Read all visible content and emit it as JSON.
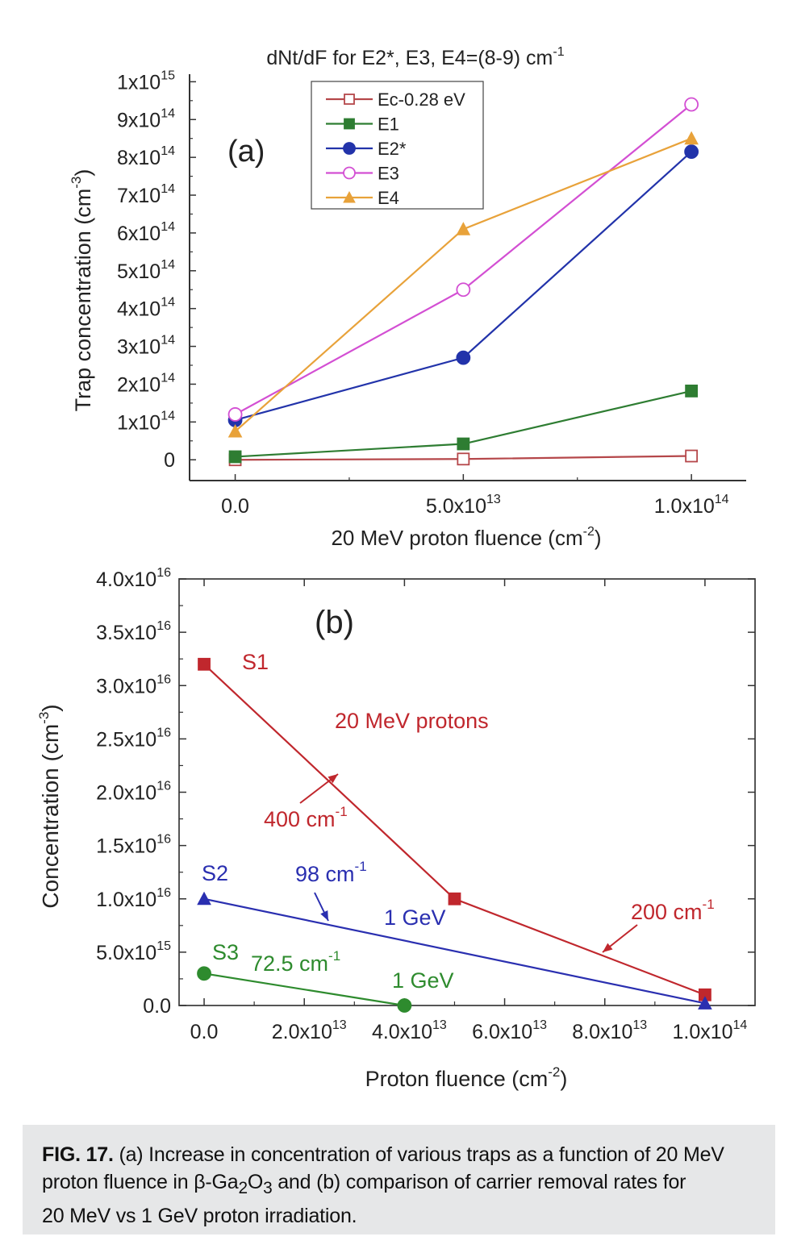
{
  "chart_data": [
    {
      "panel": "(a)",
      "type": "line",
      "title": "dNt/dF for E2*, E3, E4=(8-9) cm",
      "title_sup": "-1",
      "xlabel": "20 MeV proton fluence (cm",
      "xlabel_sup": "-2",
      "xlabel_end": ")",
      "ylabel": "Trap concentration (cm",
      "ylabel_sup": "-3",
      "ylabel_end": ")",
      "xlim": [
        -10000000000000.0,
        112000000000000.0
      ],
      "ylim": [
        -55000000000000.0,
        1020000000000000.0
      ],
      "x": [
        0,
        50000000000000.0,
        100000000000000.0
      ],
      "x_tick_labels": [
        {
          "value": 0,
          "base": "0.0",
          "sup": ""
        },
        {
          "value": 50000000000000.0,
          "base": "5.0x10",
          "sup": "13"
        },
        {
          "value": 100000000000000.0,
          "base": "1.0x10",
          "sup": "14"
        }
      ],
      "y_tick_labels": [
        {
          "value": 0,
          "base": "0",
          "sup": ""
        },
        {
          "value": 100000000000000.0,
          "base": "1x10",
          "sup": "14"
        },
        {
          "value": 200000000000000.0,
          "base": "2x10",
          "sup": "14"
        },
        {
          "value": 300000000000000.0,
          "base": "3x10",
          "sup": "14"
        },
        {
          "value": 400000000000000.0,
          "base": "4x10",
          "sup": "14"
        },
        {
          "value": 500000000000000.0,
          "base": "5x10",
          "sup": "14"
        },
        {
          "value": 600000000000000.0,
          "base": "6x10",
          "sup": "14"
        },
        {
          "value": 700000000000000.0,
          "base": "7x10",
          "sup": "14"
        },
        {
          "value": 800000000000000.0,
          "base": "8x10",
          "sup": "14"
        },
        {
          "value": 900000000000000.0,
          "base": "9x10",
          "sup": "14"
        },
        {
          "value": 1000000000000000.0,
          "base": "1x10",
          "sup": "15"
        }
      ],
      "series": [
        {
          "name": "Ec-0.28 eV",
          "color": "#b5474a",
          "marker": "square-open",
          "values": [
            0,
            2000000000000.0,
            10000000000000.0
          ]
        },
        {
          "name": "E1",
          "color": "#2e7d32",
          "marker": "square",
          "values": [
            8000000000000.0,
            42000000000000.0,
            182000000000000.0
          ]
        },
        {
          "name": "E2*",
          "color": "#2233aa",
          "marker": "circle",
          "values": [
            105000000000000.0,
            270000000000000.0,
            815000000000000.0
          ]
        },
        {
          "name": "E3",
          "color": "#d34fd3",
          "marker": "circle-open",
          "values": [
            120000000000000.0,
            450000000000000.0,
            940000000000000.0
          ]
        },
        {
          "name": "E4",
          "color": "#e8a23a",
          "marker": "triangle",
          "values": [
            75000000000000.0,
            610000000000000.0,
            850000000000000.0
          ]
        }
      ],
      "annotation": "(a)",
      "legend_position": "top-left"
    },
    {
      "panel": "(b)",
      "type": "line",
      "xlabel": "Proton fluence (cm",
      "xlabel_sup": "-2",
      "xlabel_end": ")",
      "ylabel": "Concentration (cm",
      "ylabel_sup": "-3",
      "ylabel_end": ")",
      "xlim": [
        -5000000000000.0,
        110000000000000.0
      ],
      "ylim": [
        0,
        4e+16
      ],
      "x_tick_labels": [
        {
          "value": 0,
          "base": "0.0",
          "sup": ""
        },
        {
          "value": 20000000000000.0,
          "base": "2.0x10",
          "sup": "13"
        },
        {
          "value": 40000000000000.0,
          "base": "4.0x10",
          "sup": "13"
        },
        {
          "value": 60000000000000.0,
          "base": "6.0x10",
          "sup": "13"
        },
        {
          "value": 80000000000000.0,
          "base": "8.0x10",
          "sup": "13"
        },
        {
          "value": 100000000000000.0,
          "base": "1.0x10",
          "sup": "14"
        }
      ],
      "y_tick_labels": [
        {
          "value": 0,
          "base": "0.0",
          "sup": ""
        },
        {
          "value": 5000000000000000.0,
          "base": "5.0x10",
          "sup": "15"
        },
        {
          "value": 1e+16,
          "base": "1.0x10",
          "sup": "16"
        },
        {
          "value": 1.5e+16,
          "base": "1.5x10",
          "sup": "16"
        },
        {
          "value": 2e+16,
          "base": "2.0x10",
          "sup": "16"
        },
        {
          "value": 2.5e+16,
          "base": "2.5x10",
          "sup": "16"
        },
        {
          "value": 3e+16,
          "base": "3.0x10",
          "sup": "16"
        },
        {
          "value": 3.5e+16,
          "base": "3.5x10",
          "sup": "16"
        },
        {
          "value": 4e+16,
          "base": "4.0x10",
          "sup": "16"
        }
      ],
      "series": [
        {
          "name": "S1",
          "color": "#c0272d",
          "marker": "square",
          "x": [
            0,
            50000000000000.0,
            100000000000000.0
          ],
          "values": [
            3.2e+16,
            1e+16,
            1000000000000000.0
          ]
        },
        {
          "name": "S2",
          "color": "#2a2fb0",
          "marker": "triangle",
          "x": [
            0,
            100000000000000.0
          ],
          "values": [
            1e+16,
            200000000000000.0
          ]
        },
        {
          "name": "S3",
          "color": "#2e8b2e",
          "marker": "circle",
          "x": [
            0,
            40000000000000.0
          ],
          "values": [
            3000000000000000.0,
            0.0
          ]
        }
      ],
      "annotations": [
        {
          "text": "(b)"
        },
        {
          "text": "20 MeV protons",
          "color": "#c0272d"
        },
        {
          "text": "400 cm",
          "sup": "-1",
          "color": "#c0272d"
        },
        {
          "text": "200 cm",
          "sup": "-1",
          "color": "#c0272d"
        },
        {
          "text": "98 cm",
          "sup": "-1",
          "color": "#2a2fb0"
        },
        {
          "text": "1 GeV",
          "color": "#2a2fb0"
        },
        {
          "text": "72.5 cm",
          "sup": "-1",
          "color": "#2e8b2e"
        },
        {
          "text": "1 GeV",
          "color": "#2e8b2e"
        }
      ]
    }
  ],
  "caption": {
    "label": "FIG. 17.",
    "line1": "(a) Increase in concentration of various traps as a function of 20 MeV",
    "line2_a": "proton fluence in β-Ga",
    "line2_sub1": "2",
    "line2_b": "O",
    "line2_sub2": "3",
    "line2_c": " and (b) comparison of carrier removal rates for",
    "line3": "20 MeV vs 1 GeV proton irradiation."
  }
}
